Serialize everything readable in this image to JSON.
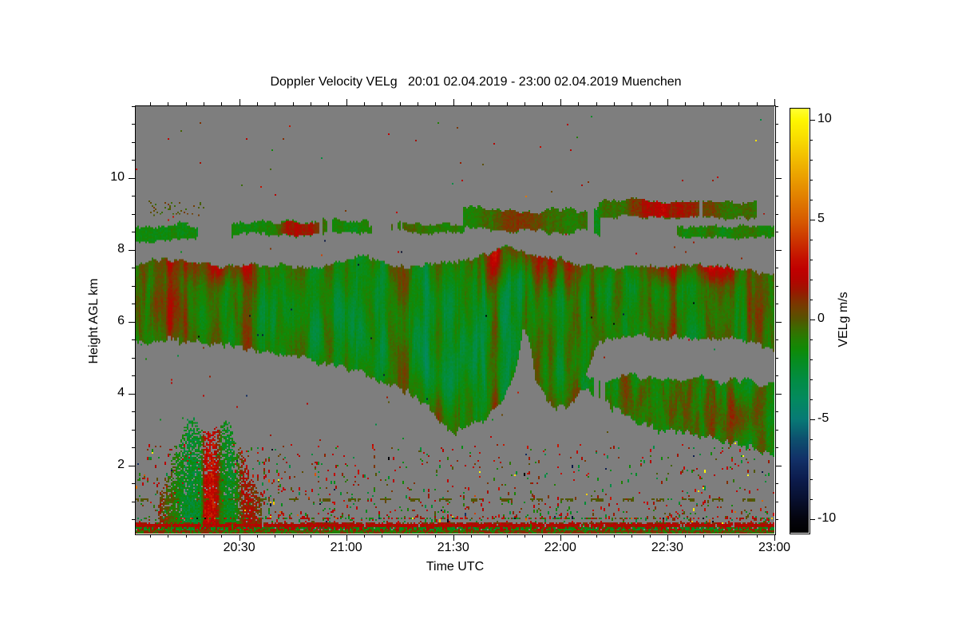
{
  "title": "Doppler Velocity VELg   20:01 02.04.2019 - 23:00 02.04.2019 Muenchen",
  "axes": {
    "x": {
      "label": "Time UTC",
      "start": "20:01",
      "end": "23:00",
      "duration_min": 179,
      "major_ticks": [
        {
          "label": "20:30",
          "min": 29
        },
        {
          "label": "21:00",
          "min": 59
        },
        {
          "label": "21:30",
          "min": 89
        },
        {
          "label": "22:00",
          "min": 119
        },
        {
          "label": "22:30",
          "min": 149
        },
        {
          "label": "23:00",
          "min": 179
        }
      ],
      "minor_step_min": 5
    },
    "y": {
      "label": "Height AGL km",
      "min_km": 0.1,
      "max_km": 12.0,
      "major_ticks": [
        2,
        4,
        6,
        8,
        10
      ],
      "minor_step_km": 0.5
    }
  },
  "colorbar": {
    "label": "VELg m/s",
    "vmin": -10.7,
    "vmax": 10.56,
    "major_ticks": [
      10,
      5,
      0,
      -5,
      -10
    ],
    "minor_step": 1,
    "stops": [
      [
        -10.7,
        "#000000"
      ],
      [
        -10,
        "#04040E"
      ],
      [
        -9,
        "#081030"
      ],
      [
        -8,
        "#0C1C4E"
      ],
      [
        -7,
        "#123168"
      ],
      [
        -6,
        "#0D506E"
      ],
      [
        -5,
        "#077A75"
      ],
      [
        -4,
        "#038A5E"
      ],
      [
        -3,
        "#028C42"
      ],
      [
        -2,
        "#078C1C"
      ],
      [
        -1.5,
        "#108A06"
      ],
      [
        -1,
        "#237E02"
      ],
      [
        -0.5,
        "#3A6C00"
      ],
      [
        0,
        "#545400"
      ],
      [
        0.5,
        "#6E4200"
      ],
      [
        1,
        "#842D00"
      ],
      [
        1.5,
        "#9E1400"
      ],
      [
        2,
        "#B40400"
      ],
      [
        2.5,
        "#C00000"
      ],
      [
        3,
        "#C40E00"
      ],
      [
        4,
        "#CC3600"
      ],
      [
        5,
        "#D75C00"
      ],
      [
        6,
        "#E07B00"
      ],
      [
        7,
        "#E99B00"
      ],
      [
        8,
        "#F1BA00"
      ],
      [
        9,
        "#F8DA00"
      ],
      [
        10,
        "#FEF600"
      ],
      [
        10.56,
        "#FFFF30"
      ]
    ]
  },
  "plot": {
    "background": "#7E7E7E",
    "frame_color": "#000000"
  },
  "chart_data": {
    "type": "heatmap",
    "parameter": "Doppler Velocity VELg",
    "time_range_utc": [
      "20:01",
      "23:00"
    ],
    "date": "02.04.2019",
    "station": "Muenchen",
    "height_range_km": [
      0.1,
      12.0
    ],
    "value_units": "m/s",
    "value_range": [
      -10.7,
      10.56
    ],
    "features": {
      "main_cloud_deck": {
        "description": "Mid-level cloud deck across whole period; mostly weak downdrafts (green, -2..0 m/s) in vertical streaks with updraft columns and top-edge patches (red/orange, +1..+4 m/s)",
        "top_profile_min_km": [
          [
            0,
            7.55
          ],
          [
            8,
            7.7
          ],
          [
            16,
            7.65
          ],
          [
            24,
            7.5
          ],
          [
            32,
            7.55
          ],
          [
            40,
            7.5
          ],
          [
            48,
            7.45
          ],
          [
            56,
            7.6
          ],
          [
            63,
            7.8
          ],
          [
            70,
            7.6
          ],
          [
            78,
            7.5
          ],
          [
            86,
            7.55
          ],
          [
            94,
            7.7
          ],
          [
            100,
            7.95
          ],
          [
            104,
            8.05
          ],
          [
            108,
            7.9
          ],
          [
            113,
            7.8
          ],
          [
            118,
            7.7
          ],
          [
            124,
            7.55
          ],
          [
            130,
            7.45
          ],
          [
            136,
            7.5
          ],
          [
            142,
            7.45
          ],
          [
            148,
            7.5
          ],
          [
            154,
            7.55
          ],
          [
            160,
            7.5
          ],
          [
            166,
            7.45
          ],
          [
            172,
            7.4
          ],
          [
            179,
            7.3
          ]
        ],
        "bottom_profile_min_km": [
          [
            0,
            5.5
          ],
          [
            8,
            5.52
          ],
          [
            16,
            5.45
          ],
          [
            24,
            5.4
          ],
          [
            32,
            5.3
          ],
          [
            40,
            5.15
          ],
          [
            48,
            5.0
          ],
          [
            56,
            4.8
          ],
          [
            63,
            4.6
          ],
          [
            70,
            4.35
          ],
          [
            76,
            4.1
          ],
          [
            81,
            3.7
          ],
          [
            85,
            3.2
          ],
          [
            89,
            2.95
          ],
          [
            93,
            3.15
          ],
          [
            97,
            3.3
          ],
          [
            101,
            3.6
          ],
          [
            105,
            4.3
          ],
          [
            107,
            5.0
          ],
          [
            108.5,
            5.9
          ],
          [
            110,
            5.5
          ],
          [
            112,
            4.4
          ],
          [
            115,
            3.9
          ],
          [
            118,
            3.65
          ],
          [
            121,
            3.7
          ],
          [
            124,
            4.0
          ],
          [
            126,
            4.5
          ],
          [
            128,
            5.1
          ],
          [
            130,
            5.45
          ],
          [
            134,
            5.6
          ],
          [
            140,
            5.65
          ],
          [
            146,
            5.55
          ],
          [
            152,
            5.6
          ],
          [
            158,
            5.5
          ],
          [
            164,
            5.6
          ],
          [
            170,
            5.5
          ],
          [
            175,
            5.45
          ],
          [
            179,
            5.2
          ]
        ],
        "base_velocity_ms": -0.9,
        "streak_velocity_amp_ms": 2.3,
        "top_edge_red_patches_min": [
          [
            25,
            2.1
          ],
          [
            101,
            2.4
          ],
          [
            118,
            1.6
          ],
          [
            146,
            1.5
          ],
          [
            161,
            2.6
          ],
          [
            8,
            1.2
          ]
        ]
      },
      "high_cirrus_segments": [
        {
          "t": [
            0,
            17
          ],
          "km": [
            8.28,
            8.62
          ],
          "v": -1.5,
          "gap": 0.08,
          "patch": null
        },
        {
          "t": [
            17,
            27
          ],
          "km": [
            8.42,
            8.62
          ],
          "v": -1.2,
          "gap": 0.45,
          "patch": null
        },
        {
          "t": [
            27,
            65
          ],
          "km": [
            8.45,
            8.78
          ],
          "v": -1.3,
          "gap": 0.2,
          "patch": {
            "center": 46,
            "sigma": 4.5,
            "amp": 3.2
          }
        },
        {
          "t": [
            65,
            92
          ],
          "km": [
            8.5,
            8.68
          ],
          "v": -0.7,
          "gap": 0.42,
          "patch": null
        },
        {
          "t": [
            92,
            130
          ],
          "km": [
            8.55,
            9.12
          ],
          "v": -1.1,
          "gap": 0.18,
          "patch": {
            "center": 105,
            "sigma": 6,
            "amp": 1.8
          }
        },
        {
          "t": [
            130,
            174
          ],
          "km": [
            8.95,
            9.33
          ],
          "v": -0.4,
          "gap": 0.22,
          "patch": {
            "center": 149,
            "sigma": 6,
            "amp": 2.6
          }
        },
        {
          "t": [
            152,
            179
          ],
          "km": [
            8.36,
            8.64
          ],
          "v": -1.1,
          "gap": 0.25,
          "patch": null
        }
      ],
      "right_mid_cloud": {
        "description": "Low/mid cloud 22:05-23:00 between ~2.3 and 4.5 km, green with olive/red patches",
        "top_profile_min_km": [
          [
            124,
            4.5
          ],
          [
            128,
            4.45
          ],
          [
            132,
            4.35
          ],
          [
            137,
            4.5
          ],
          [
            142,
            4.4
          ],
          [
            147,
            4.45
          ],
          [
            152,
            4.35
          ],
          [
            158,
            4.45
          ],
          [
            164,
            4.3
          ],
          [
            170,
            4.35
          ],
          [
            175,
            4.25
          ],
          [
            179,
            4.3
          ]
        ],
        "bottom_profile_min_km": [
          [
            124,
            4.25
          ],
          [
            128,
            4.0
          ],
          [
            132,
            3.75
          ],
          [
            137,
            3.45
          ],
          [
            142,
            3.2
          ],
          [
            147,
            3.0
          ],
          [
            152,
            2.95
          ],
          [
            158,
            2.85
          ],
          [
            164,
            2.75
          ],
          [
            170,
            2.6
          ],
          [
            175,
            2.45
          ],
          [
            179,
            2.2
          ]
        ],
        "base_velocity_ms": -1.5
      },
      "boundary_layer_plume": {
        "description": "Aerosol/precip plume 20:08-20:36 up to ~3.3 km with strong red updraft streak near 20:21 and green downdraft columns",
        "hmax_profile_min_km": [
          [
            7,
            1.2
          ],
          [
            10,
            2.1
          ],
          [
            13,
            3.05
          ],
          [
            16,
            3.3
          ],
          [
            19,
            2.85
          ],
          [
            21,
            2.9
          ],
          [
            23,
            3.15
          ],
          [
            26,
            3.3
          ],
          [
            28,
            2.5
          ],
          [
            31,
            2.0
          ],
          [
            33,
            1.5
          ],
          [
            35,
            1.05
          ]
        ],
        "velocity_profile_min_ms": [
          [
            7,
            0.8
          ],
          [
            11,
            -1.2
          ],
          [
            14,
            -2.4
          ],
          [
            18,
            -2.3
          ],
          [
            19.2,
            2.6
          ],
          [
            21.5,
            2.9
          ],
          [
            22.8,
            1.5
          ],
          [
            24,
            -1.6
          ],
          [
            26,
            -2.3
          ],
          [
            28,
            -1.6
          ],
          [
            29.5,
            1.2
          ],
          [
            31,
            1.9
          ],
          [
            33,
            1.2
          ],
          [
            35,
            0.6
          ]
        ]
      },
      "dashed_range_line_km": 1.07,
      "surface_echo_band_km": [
        0.0,
        0.45
      ],
      "speckle_noise": "sparse red/green noise speckle below ~2.6 km, densest before 20:45; rare colored single pixels aloft"
    }
  }
}
